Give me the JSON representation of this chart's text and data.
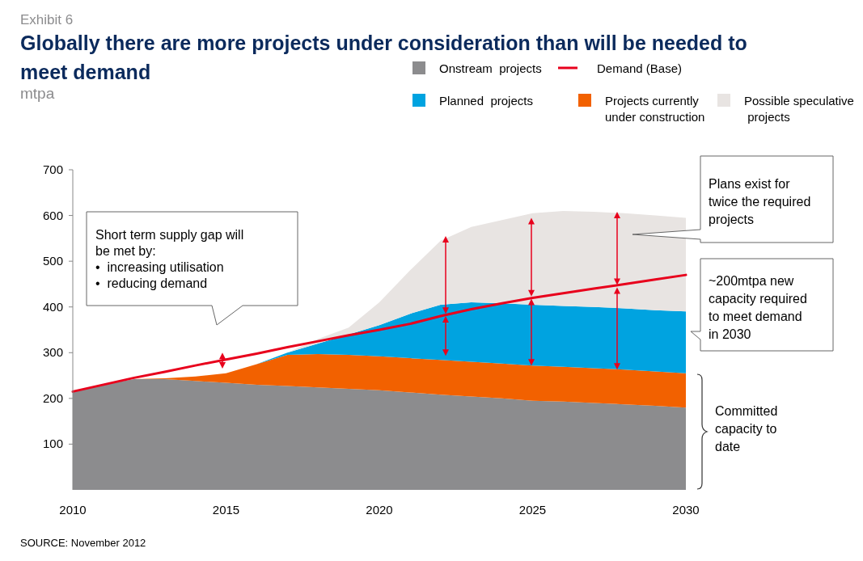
{
  "chart_data": {
    "type": "area",
    "title": "Globally there are more projects under consideration than will be needed to meet demand",
    "ylabel": "mtpa",
    "stacked": true,
    "legend": "top right",
    "grid": false,
    "x": [
      2010,
      2011,
      2012,
      2013,
      2014,
      2015,
      2016,
      2017,
      2018,
      2019,
      2020,
      2021,
      2022,
      2023,
      2024,
      2025,
      2026,
      2027,
      2028,
      2029,
      2030
    ],
    "xlim": [
      2010,
      2030
    ],
    "xticks": [
      2010,
      2015,
      2020,
      2025,
      2030
    ],
    "ylim": [
      0,
      700
    ],
    "yticks": [
      100,
      200,
      300,
      400,
      500,
      600,
      700
    ],
    "series": [
      {
        "name": "Onstream  projects",
        "color": "#8c8c8e",
        "values": [
          215,
          230,
          242,
          242,
          238,
          234,
          230,
          227,
          224,
          221,
          218,
          213,
          208,
          204,
          200,
          195,
          193,
          190,
          187,
          184,
          180
        ]
      },
      {
        "name": "Projects currently\nunder construction",
        "color": "#f26100",
        "values": [
          0,
          0,
          0,
          2,
          10,
          21,
          45,
          68,
          73,
          74,
          74,
          75,
          76,
          76,
          76,
          77,
          76,
          76,
          76,
          75,
          75
        ]
      },
      {
        "name": "Planned  projects",
        "color": "#00a3e0",
        "values": [
          0,
          0,
          0,
          0,
          0,
          0,
          0,
          5,
          23,
          45,
          68,
          97,
          121,
          130,
          132,
          133,
          133,
          134,
          134,
          134,
          135
        ]
      },
      {
        "name": "Possible speculative\n projects",
        "color": "#e8e4e2",
        "values": [
          0,
          0,
          0,
          0,
          0,
          0,
          0,
          0,
          10,
          15,
          50,
          95,
          140,
          165,
          182,
          200,
          208,
          208,
          208,
          207,
          205
        ]
      },
      {
        "name": "Demand (Base)",
        "type": "line",
        "color": "#e8001c",
        "values": [
          215,
          230,
          245,
          258,
          272,
          285,
          298,
          312,
          325,
          338,
          350,
          363,
          380,
          395,
          408,
          420,
          430,
          440,
          450,
          460,
          470
        ]
      }
    ],
    "annotations": [
      "Exhibit 6",
      "Short term supply gap will\nbe met by:\n•  increasing utilisation\n•  reducing demand",
      "Plans exist for\ntwice the required\nprojects",
      "~200mtpa new\ncapacity required\nto meet demand\nin 2030",
      "Committed\ncapacity to\ndate",
      "SOURCE: November 2012"
    ]
  }
}
